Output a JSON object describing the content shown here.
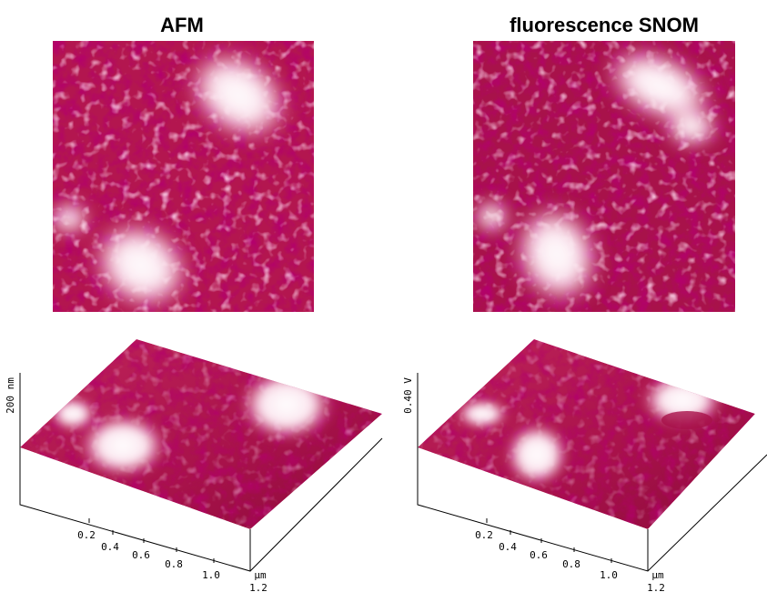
{
  "panels": [
    {
      "title": "AFM",
      "z_axis_label": "200 nm",
      "x_ticks": [
        "0.2",
        "0.4",
        "0.6",
        "0.8",
        "1.0"
      ],
      "x_unit": "µm",
      "x_end": "1.2"
    },
    {
      "title": "fluorescence SNOM",
      "z_axis_label": "0.40 V",
      "x_ticks": [
        "0.2",
        "0.4",
        "0.6",
        "0.8",
        "1.0"
      ],
      "x_unit": "µm",
      "x_end": "1.2"
    }
  ]
}
